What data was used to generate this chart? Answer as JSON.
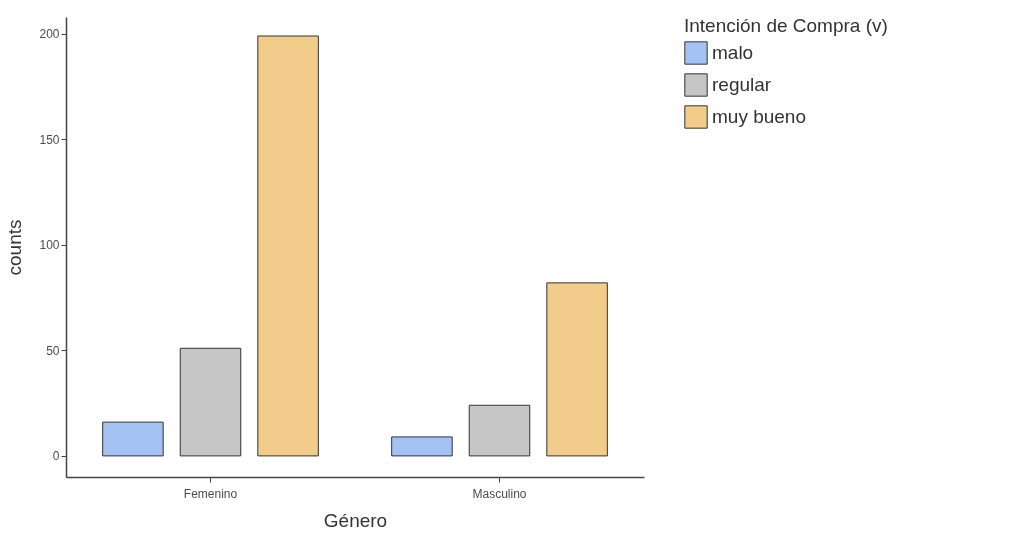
{
  "chart_data": {
    "type": "bar",
    "xlabel": "Género",
    "ylabel": "counts",
    "legend_title": "Intención de Compra (v)",
    "categories": [
      "Femenino",
      "Masculino"
    ],
    "series": [
      {
        "name": "malo",
        "color": "#a4c2f4",
        "values": [
          16,
          9
        ]
      },
      {
        "name": "regular",
        "color": "#c6c6c6",
        "values": [
          51,
          24
        ]
      },
      {
        "name": "muy bueno",
        "color": "#f1cc8a",
        "values": [
          199,
          82
        ]
      }
    ],
    "ylim": [
      -10,
      208
    ],
    "yticks": [
      0,
      50,
      100,
      150,
      200
    ],
    "grid": false,
    "legend": "right"
  }
}
